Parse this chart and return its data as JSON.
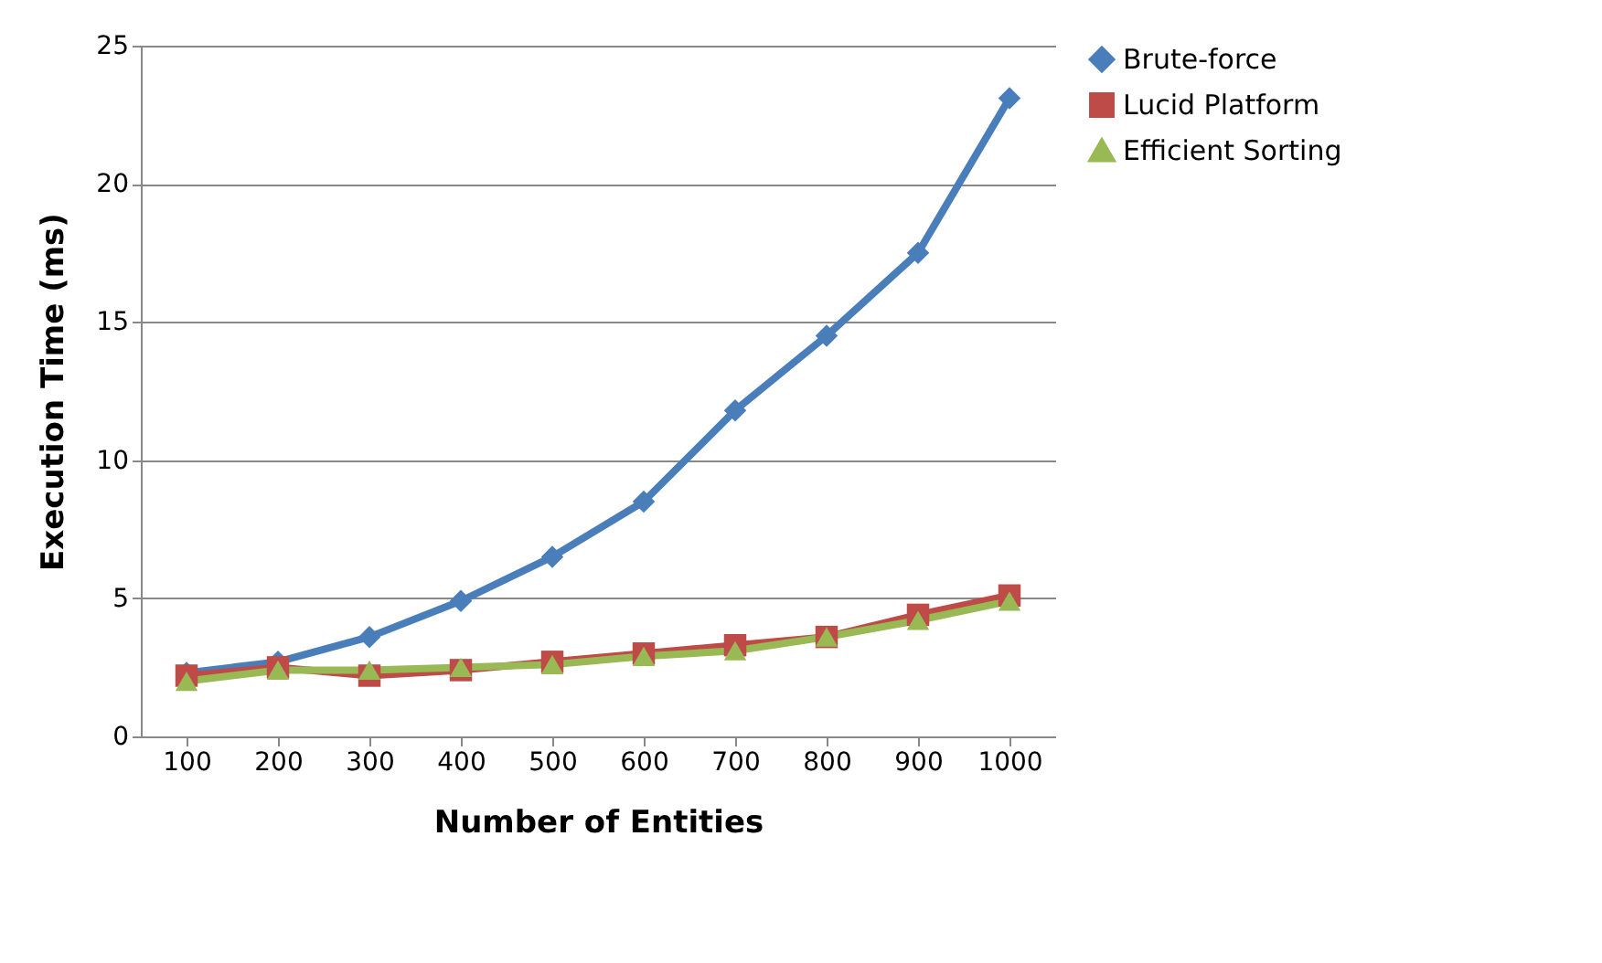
{
  "chart_data": {
    "type": "line",
    "xlabel": "Number of Entities",
    "ylabel": "Execution  Time (ms)",
    "categories": [
      "100",
      "200",
      "300",
      "400",
      "500",
      "600",
      "700",
      "800",
      "900",
      "1000"
    ],
    "ylim": [
      0,
      25
    ],
    "yticks": [
      0,
      5,
      10,
      15,
      20,
      25
    ],
    "grid": "y",
    "legend": "right",
    "series": [
      {
        "name": "Brute-force",
        "color": "#4a7ebb",
        "marker": "diamond",
        "values": [
          2.3,
          2.7,
          3.6,
          4.9,
          6.5,
          8.5,
          11.8,
          14.5,
          17.5,
          23.1
        ]
      },
      {
        "name": "Lucid Platform",
        "color": "#be4b48",
        "marker": "square",
        "values": [
          2.2,
          2.5,
          2.2,
          2.4,
          2.7,
          3.0,
          3.3,
          3.6,
          4.4,
          5.1
        ]
      },
      {
        "name": "Efficient Sorting",
        "color": "#98b954",
        "marker": "triangle",
        "values": [
          2.0,
          2.4,
          2.4,
          2.5,
          2.6,
          2.9,
          3.1,
          3.6,
          4.2,
          4.9
        ]
      }
    ]
  }
}
